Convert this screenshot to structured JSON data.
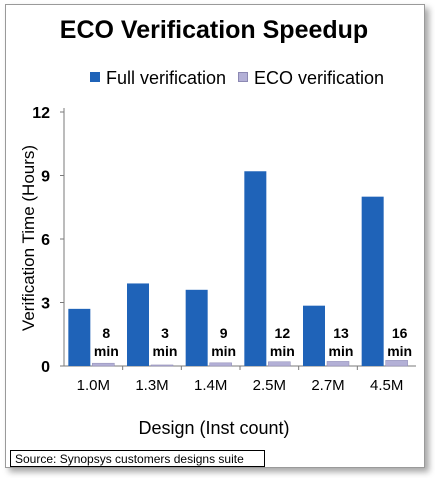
{
  "chart_data": {
    "type": "bar",
    "title": "ECO Verification Speedup",
    "xlabel": "Design (Inst count)",
    "ylabel": "Verification Time (Hours)",
    "categories": [
      "1.0M",
      "1.3M",
      "1.4M",
      "2.5M",
      "2.7M",
      "4.5M"
    ],
    "ylim": [
      0,
      12
    ],
    "yticks": [
      0,
      3,
      6,
      9,
      12
    ],
    "grid": false,
    "legend_position": "top",
    "series": [
      {
        "name": "Full verification",
        "color": "#1f63b8",
        "values": [
          2.7,
          3.9,
          3.6,
          9.2,
          2.85,
          8.0
        ]
      },
      {
        "name": "ECO verification",
        "color": "#b3b0d6",
        "values": [
          0.133,
          0.05,
          0.15,
          0.2,
          0.217,
          0.267
        ]
      }
    ],
    "data_labels": [
      {
        "value": "8",
        "unit": "min"
      },
      {
        "value": "3",
        "unit": "min"
      },
      {
        "value": "9",
        "unit": "min"
      },
      {
        "value": "12",
        "unit": "min"
      },
      {
        "value": "13",
        "unit": "min"
      },
      {
        "value": "16",
        "unit": "min"
      }
    ]
  },
  "source_note": "Source: Synopsys customers designs suite"
}
